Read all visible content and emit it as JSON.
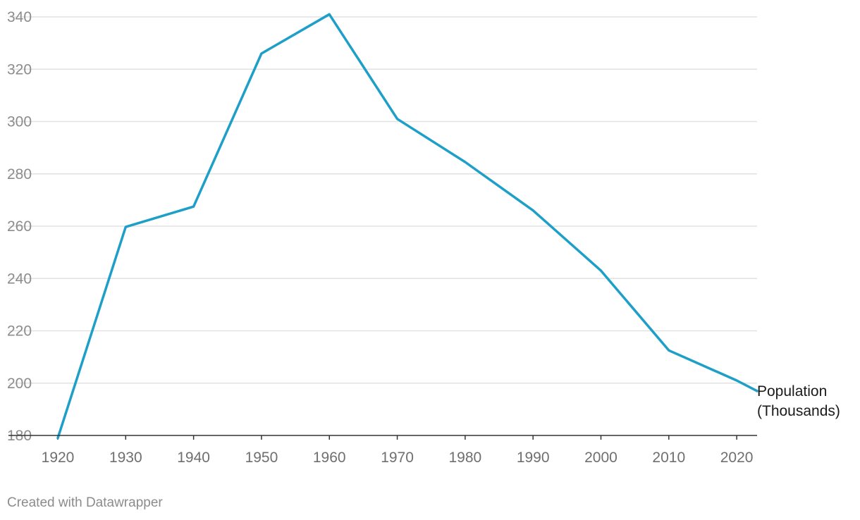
{
  "chart_data": {
    "type": "line",
    "x": [
      1920,
      1930,
      1940,
      1950,
      1960,
      1970,
      1980,
      1990,
      2000,
      2010,
      2020,
      2023
    ],
    "series": [
      {
        "name": "Population (Thousands)",
        "name_lines": [
          "Population",
          "(Thousands)"
        ],
        "color": "#1d9fc8",
        "values": [
          179,
          259.7,
          267.5,
          326,
          341,
          301,
          284.5,
          266,
          243,
          212.5,
          201,
          197
        ]
      }
    ],
    "xticks": [
      "1920",
      "1930",
      "1940",
      "1950",
      "1960",
      "1970",
      "1980",
      "1990",
      "2000",
      "2010",
      "2020"
    ],
    "yticks": [
      "180",
      "200",
      "220",
      "240",
      "260",
      "280",
      "300",
      "320",
      "340"
    ],
    "xlim": [
      1920,
      2023
    ],
    "ylim": [
      180,
      340
    ],
    "grid": true,
    "colors": {
      "grid": "#e2e2e2",
      "axis": "#333333"
    }
  },
  "credit": "Created with Datawrapper"
}
